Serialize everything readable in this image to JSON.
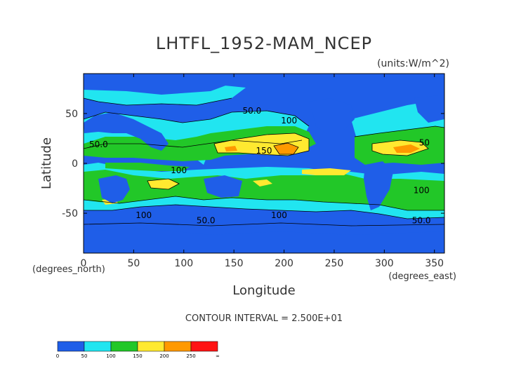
{
  "chart_data": {
    "type": "heatmap",
    "title": "LHTFL_1952-MAM_NCEP",
    "units_label": "(units:W/m^2)",
    "xlabel": "Longitude",
    "ylabel": "Latitude",
    "x_unit_label": "(degrees_east)",
    "y_unit_label": "(degrees_north)",
    "xlim": [
      0,
      360
    ],
    "ylim": [
      -90,
      90
    ],
    "x_ticks": [
      0,
      50,
      100,
      150,
      200,
      250,
      300,
      350
    ],
    "y_ticks": [
      50,
      0,
      -50
    ],
    "contour_note": "CONTOUR INTERVAL = 2.500E+01",
    "contour_labels": [
      {
        "text": "100",
        "lon": 205,
        "lat": 40
      },
      {
        "text": "150",
        "lon": 180,
        "lat": 10
      },
      {
        "text": "50.0",
        "lon": 15,
        "lat": 16
      },
      {
        "text": "50.0",
        "lon": 168,
        "lat": 50
      },
      {
        "text": "100",
        "lon": 95,
        "lat": -10
      },
      {
        "text": "100",
        "lon": 60,
        "lat": -55
      },
      {
        "text": "50.0",
        "lon": 122,
        "lat": -60
      },
      {
        "text": "100",
        "lon": 195,
        "lat": -55
      },
      {
        "text": "50",
        "lon": 340,
        "lat": 18
      },
      {
        "text": "100",
        "lon": 337,
        "lat": -30
      },
      {
        "text": "50.0",
        "lon": 337,
        "lat": -60
      }
    ],
    "colorbar": {
      "labels": [
        "0",
        "50",
        "100",
        "150",
        "200",
        "250",
        "∞"
      ],
      "colors": [
        "#1f5ee8",
        "#21e5f0",
        "#22c728",
        "#ffe930",
        "#ff9900",
        "#ff1414"
      ]
    }
  }
}
